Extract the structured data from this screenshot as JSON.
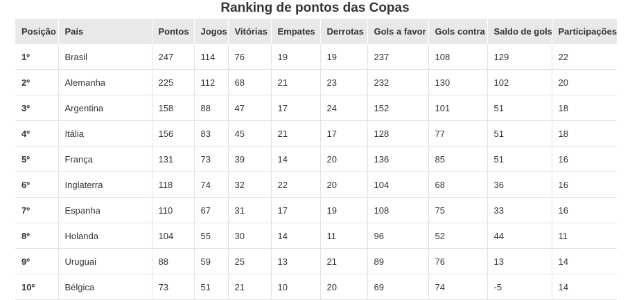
{
  "header": {
    "title": "Ranking de pontos das Copas"
  },
  "table": {
    "columns": [
      "Posição",
      "País",
      "Pontos",
      "Jogos",
      "Vitórias",
      "Empates",
      "Derrotas",
      "Gols a favor",
      "Gols contra",
      "Saldo de gols",
      "Participações"
    ],
    "rows": [
      [
        "1º",
        "Brasil",
        247,
        114,
        76,
        19,
        19,
        237,
        108,
        129,
        22
      ],
      [
        "2º",
        "Alemanha",
        225,
        112,
        68,
        21,
        23,
        232,
        130,
        102,
        20
      ],
      [
        "3º",
        "Argentina",
        158,
        88,
        47,
        17,
        24,
        152,
        101,
        51,
        18
      ],
      [
        "4º",
        "Itália",
        156,
        83,
        45,
        21,
        17,
        128,
        77,
        51,
        18
      ],
      [
        "5º",
        "França",
        131,
        73,
        39,
        14,
        20,
        136,
        85,
        51,
        16
      ],
      [
        "6º",
        "Inglaterra",
        118,
        74,
        32,
        22,
        20,
        104,
        68,
        36,
        16
      ],
      [
        "7º",
        "Espanha",
        110,
        67,
        31,
        17,
        19,
        108,
        75,
        33,
        16
      ],
      [
        "8º",
        "Holanda",
        104,
        55,
        30,
        14,
        11,
        96,
        52,
        44,
        11
      ],
      [
        "9º",
        "Uruguai",
        88,
        59,
        25,
        13,
        21,
        89,
        76,
        13,
        14
      ],
      [
        "10º",
        "Bélgica",
        73,
        51,
        21,
        10,
        20,
        69,
        74,
        -5,
        14
      ]
    ]
  }
}
